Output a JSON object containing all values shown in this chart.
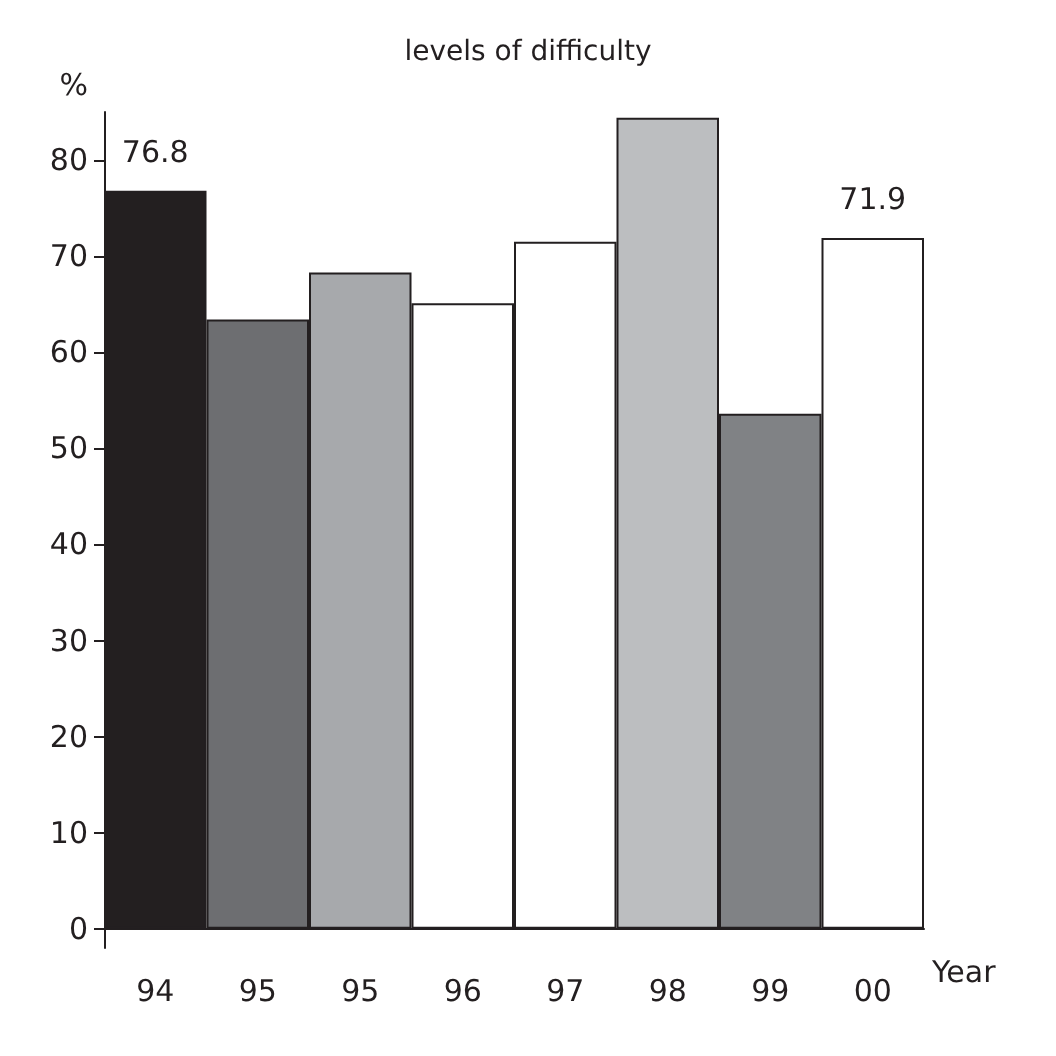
{
  "chart_data": {
    "type": "bar",
    "title": "levels of difficulty",
    "ylabel": "%",
    "xlabel": "Year",
    "categories": [
      "94",
      "95",
      "95",
      "96",
      "97",
      "98",
      "99",
      "00"
    ],
    "values": [
      76.8,
      63.4,
      68.3,
      65.1,
      71.5,
      84.4,
      53.6,
      71.9
    ],
    "colors": [
      "#231f20",
      "#6d6e71",
      "#a7a9ac",
      "#ffffff",
      "#ffffff",
      "#bcbec0",
      "#808285",
      "#ffffff"
    ],
    "value_labels": [
      "76.8",
      null,
      null,
      null,
      null,
      null,
      null,
      "71.9"
    ],
    "ylim": [
      -2,
      85
    ],
    "yticks": [
      0,
      10,
      20,
      30,
      40,
      50,
      60,
      70,
      80
    ]
  }
}
